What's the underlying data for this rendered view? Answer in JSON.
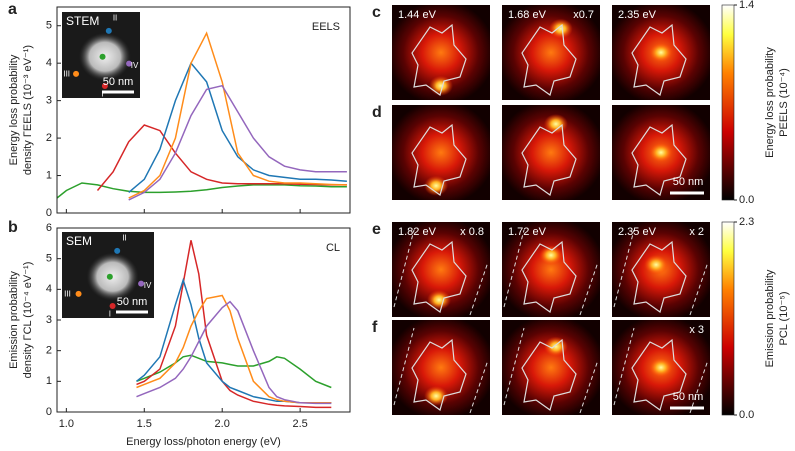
{
  "chart_data": [
    {
      "type": "line",
      "panel": "a",
      "tag": "EELS",
      "ylabel": [
        "Energy loss probability",
        "density ΓEELS (10⁻³ eV⁻¹)"
      ],
      "xlim": [
        0.94,
        2.82
      ],
      "ylim": [
        0,
        5.5
      ],
      "xticks": [
        1,
        1.5,
        2,
        2.5
      ],
      "yticks": [
        0,
        1,
        2,
        3,
        4,
        5
      ],
      "x": [
        0.94,
        1.0,
        1.1,
        1.2,
        1.3,
        1.4,
        1.5,
        1.6,
        1.7,
        1.8,
        1.9,
        2.0,
        2.1,
        2.2,
        2.3,
        2.4,
        2.5,
        2.6,
        2.7,
        2.8
      ],
      "series": [
        {
          "color": "#2ca02c",
          "values": [
            0.4,
            0.6,
            0.8,
            0.75,
            0.65,
            0.58,
            0.55,
            0.55,
            0.56,
            0.58,
            0.62,
            0.68,
            0.72,
            0.75,
            0.75,
            0.75,
            0.73,
            0.72,
            0.7,
            0.7
          ]
        },
        {
          "color": "#d62728",
          "values": [
            null,
            null,
            null,
            0.6,
            1.1,
            1.9,
            2.35,
            2.2,
            1.6,
            1.1,
            0.9,
            0.8,
            0.78,
            0.78,
            0.78,
            0.78,
            0.77,
            0.76,
            0.75,
            0.75
          ]
        },
        {
          "color": "#1f77b4",
          "values": [
            null,
            null,
            null,
            null,
            null,
            0.55,
            0.9,
            1.7,
            3.0,
            4.0,
            3.5,
            2.2,
            1.5,
            1.15,
            1.0,
            0.95,
            0.9,
            0.9,
            0.88,
            0.85
          ]
        },
        {
          "color": "#ff8c1a",
          "values": [
            null,
            null,
            null,
            null,
            null,
            0.4,
            0.6,
            1.0,
            2.0,
            4.0,
            4.8,
            3.5,
            1.6,
            1.0,
            0.85,
            0.8,
            0.8,
            0.78,
            0.76,
            0.75
          ]
        },
        {
          "color": "#9467bd",
          "values": [
            null,
            null,
            null,
            null,
            null,
            0.35,
            0.55,
            0.9,
            1.6,
            2.6,
            3.3,
            3.4,
            2.7,
            2.0,
            1.5,
            1.25,
            1.15,
            1.1,
            1.1,
            1.1
          ]
        }
      ],
      "inset": {
        "label": "STEM",
        "markers": [
          "I",
          "II",
          "III",
          "IV"
        ],
        "scale": "50 nm"
      }
    },
    {
      "type": "line",
      "panel": "b",
      "tag": "CL",
      "xlabel": "Energy loss/photon energy (eV)",
      "ylabel": [
        "Emission probability",
        "density ΓCL (10⁻⁴ eV⁻¹)"
      ],
      "xlim": [
        0.94,
        2.82
      ],
      "ylim": [
        0,
        6
      ],
      "xticks": [
        {
          "value": 1,
          "label": "1.0"
        },
        1.5,
        {
          "value": 2,
          "label": "2.0"
        },
        2.5
      ],
      "yticks": [
        0,
        1,
        2,
        3,
        4,
        5,
        6
      ],
      "x": [
        1.45,
        1.5,
        1.6,
        1.7,
        1.75,
        1.8,
        1.85,
        1.9,
        2.0,
        2.05,
        2.1,
        2.2,
        2.3,
        2.35,
        2.4,
        2.5,
        2.6,
        2.7
      ],
      "series": [
        {
          "color": "#2ca02c",
          "values": [
            1.0,
            1.1,
            1.3,
            1.6,
            1.8,
            1.85,
            1.75,
            1.65,
            1.6,
            1.55,
            1.5,
            1.5,
            1.65,
            1.8,
            1.75,
            1.4,
            1.0,
            0.8
          ]
        },
        {
          "color": "#d62728",
          "values": [
            0.9,
            1.0,
            1.4,
            2.8,
            4.2,
            5.6,
            4.5,
            2.5,
            1.0,
            0.7,
            0.55,
            0.35,
            0.25,
            0.22,
            0.2,
            0.18,
            0.15,
            0.15
          ]
        },
        {
          "color": "#1f77b4",
          "values": [
            1.0,
            1.2,
            1.8,
            3.5,
            4.3,
            3.5,
            2.4,
            1.6,
            1.0,
            0.8,
            0.7,
            0.5,
            0.4,
            0.35,
            0.35,
            0.3,
            0.3,
            0.3
          ]
        },
        {
          "color": "#ff8c1a",
          "values": [
            0.8,
            0.9,
            1.1,
            1.6,
            2.1,
            2.8,
            3.3,
            3.7,
            3.8,
            3.3,
            2.4,
            1.0,
            0.5,
            0.4,
            0.35,
            0.3,
            0.3,
            0.3
          ]
        },
        {
          "color": "#9467bd",
          "values": [
            0.5,
            0.6,
            0.8,
            1.1,
            1.4,
            1.8,
            2.3,
            2.8,
            3.4,
            3.6,
            3.3,
            2.0,
            0.8,
            0.5,
            0.4,
            0.3,
            0.28,
            0.28
          ]
        }
      ],
      "inset": {
        "label": "SEM",
        "markers": [
          "I",
          "II",
          "III",
          "IV"
        ],
        "scale": "50 nm"
      }
    }
  ],
  "maps": [
    {
      "panel": "c",
      "energies": [
        "1.44 eV",
        "1.68 eV",
        "2.35 eV"
      ],
      "factors": [
        null,
        "x0.7",
        null
      ]
    },
    {
      "panel": "d",
      "scale": "50 nm"
    },
    {
      "panel": "e",
      "energies": [
        "1.82 eV",
        "1.72 eV",
        "2.35 eV"
      ],
      "factors": [
        "x 0.8",
        null,
        "x 2"
      ]
    },
    {
      "panel": "f",
      "factors": [
        null,
        null,
        "x 3"
      ],
      "scale": "50 nm"
    }
  ],
  "colorbars": [
    {
      "label": [
        "Energy loss probability",
        "PEELS (10⁻⁴)"
      ],
      "ticks": [
        {
          "value": 0,
          "label": "0.0"
        },
        1.4
      ]
    },
    {
      "label": [
        "Emission probability",
        "PCL (10⁻⁵)"
      ],
      "ticks": [
        {
          "value": 0,
          "label": "0.0"
        },
        2.3
      ]
    }
  ]
}
